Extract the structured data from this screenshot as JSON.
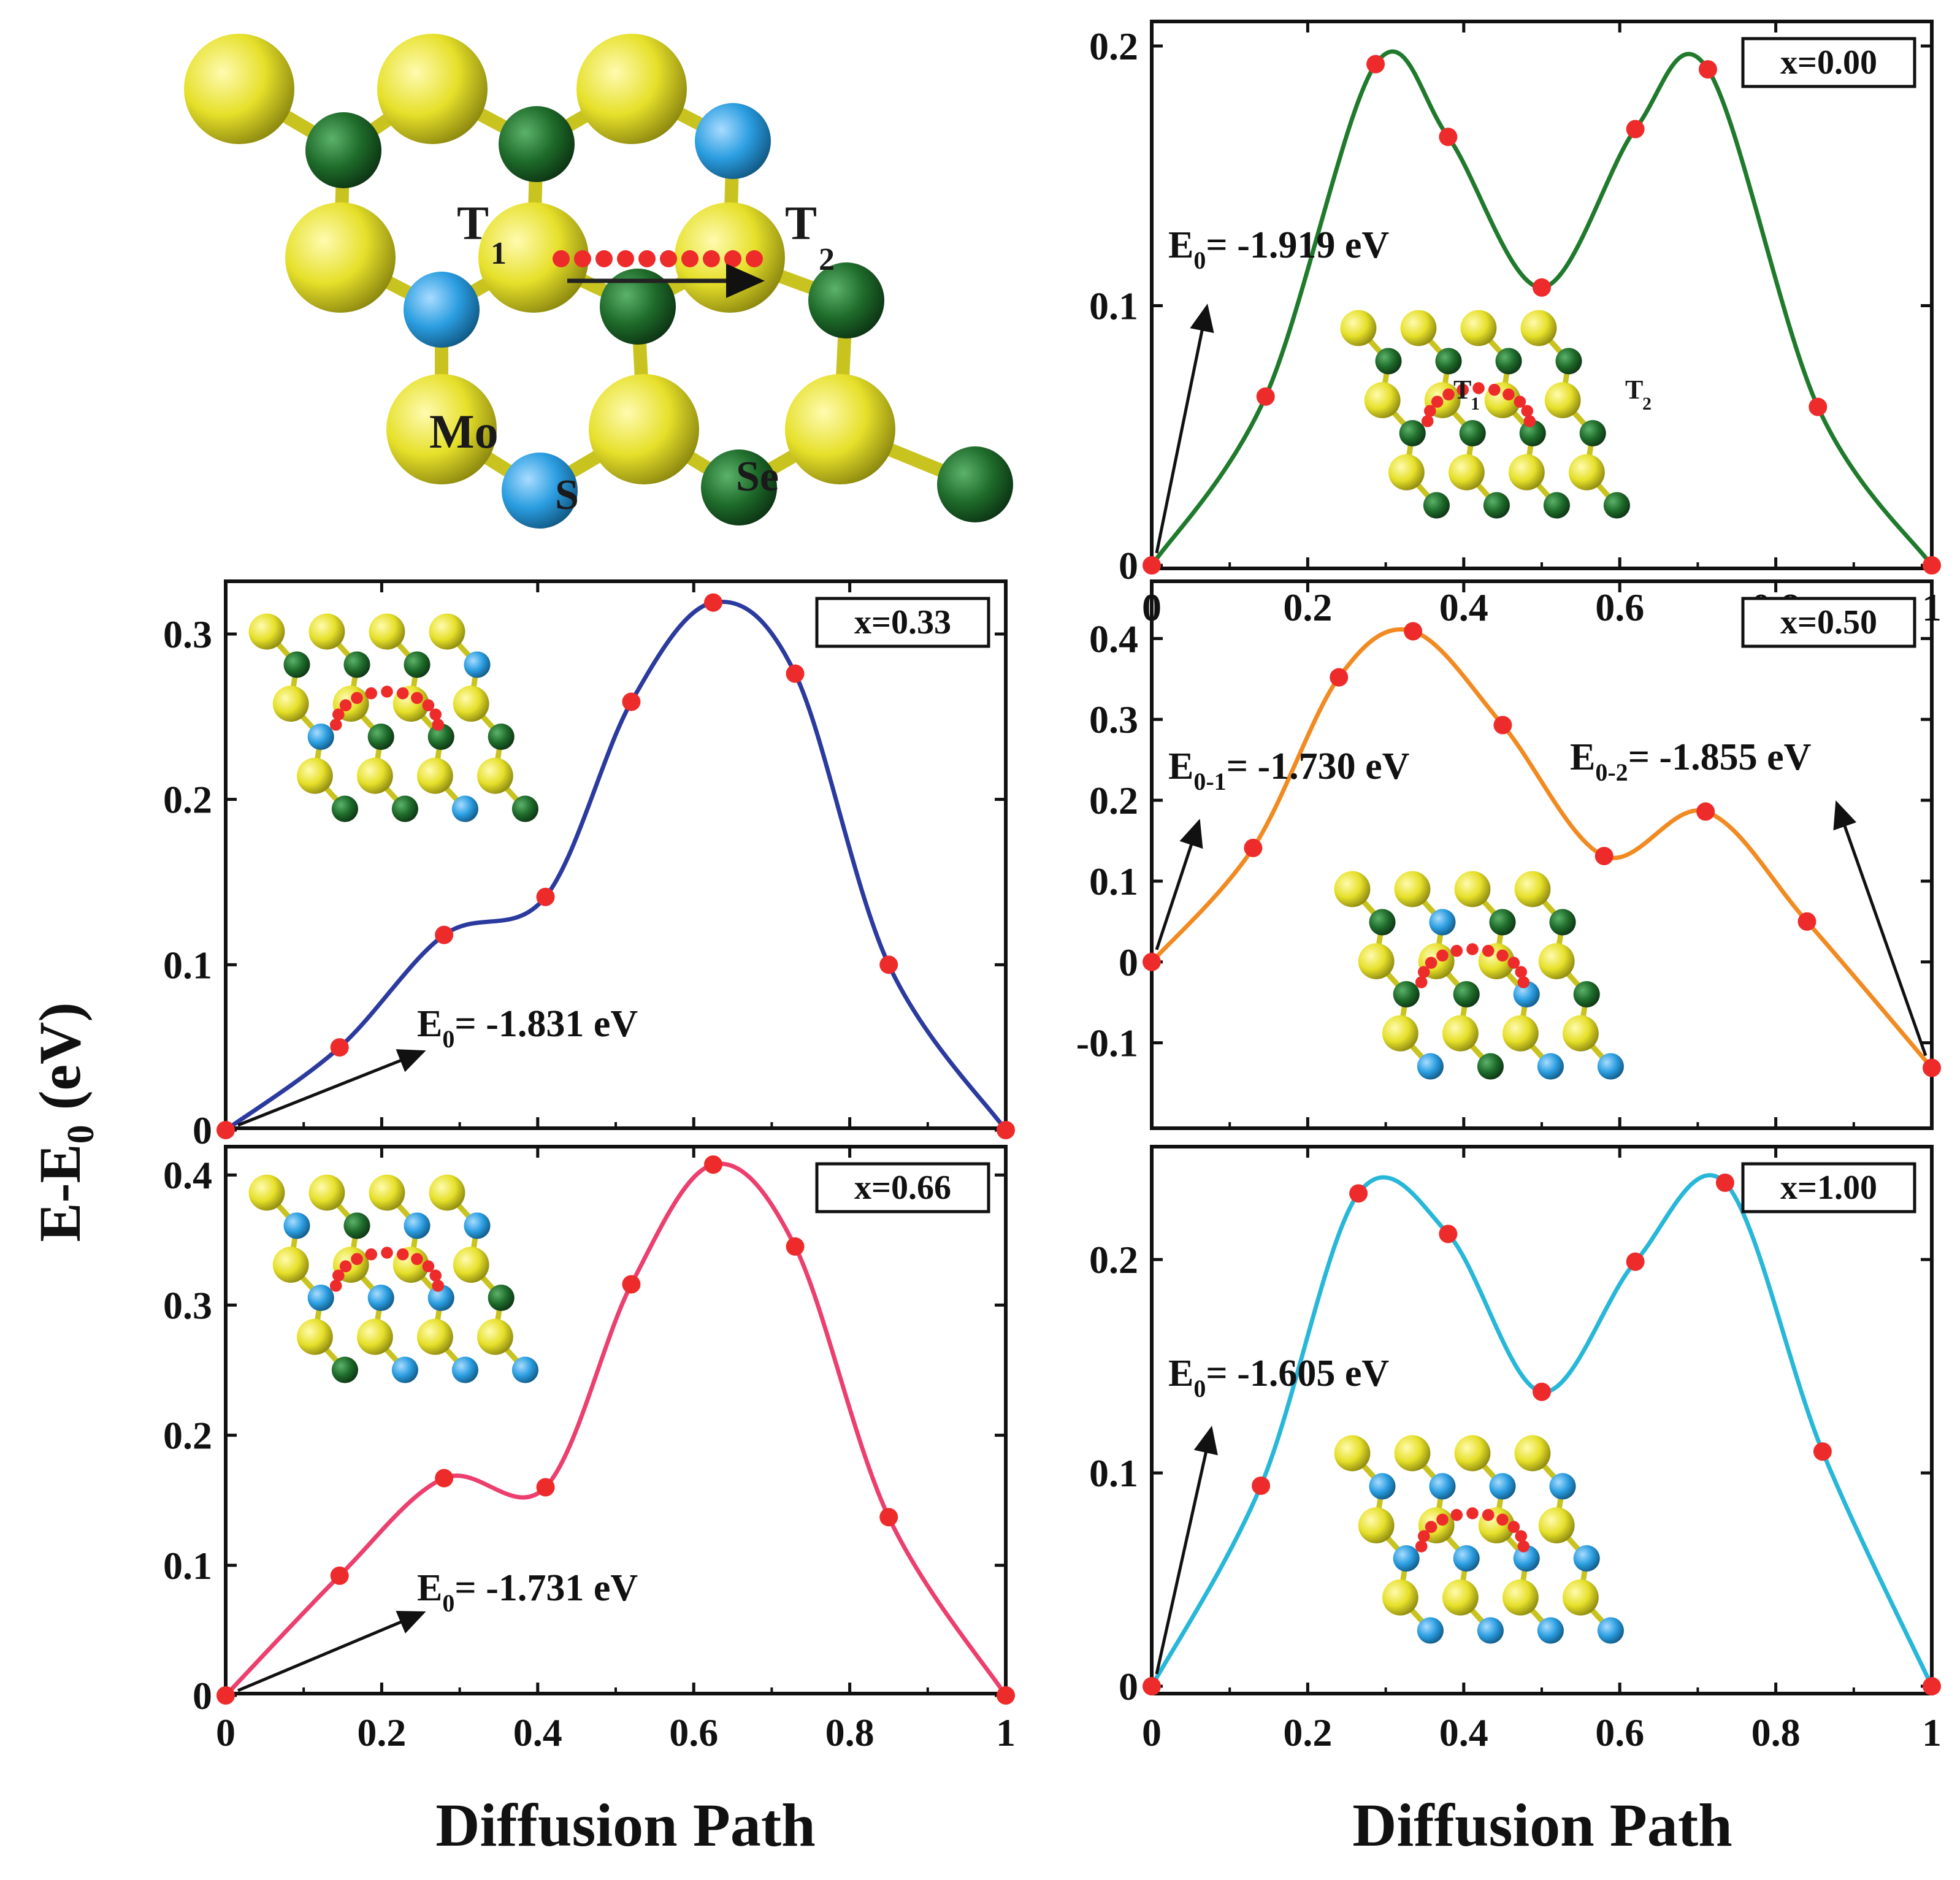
{
  "colors": {
    "Mo": "#e6e02a",
    "S": "#1e6b2a",
    "Se": "#2a9de0",
    "point": "#ee2b2b",
    "frame": "#111111"
  },
  "structure": {
    "labels": {
      "T1": "T",
      "T1_sub": "1",
      "T2": "T",
      "T2_sub": "2",
      "Mo": "Mo",
      "S": "S",
      "Se": "Se"
    }
  },
  "ylabel": {
    "main": "E-E",
    "sub": "0",
    "unit": " (eV)"
  },
  "xlabel": "Diffusion Path",
  "chart_data": [
    {
      "id": "x000",
      "type": "line",
      "legend": "x=0.00",
      "color": "#1f7a2c",
      "xlim": [
        0,
        1
      ],
      "ylim": [
        0,
        0.2
      ],
      "xticks": [
        "0",
        "0.2",
        "0.4",
        "0.6",
        "0.8",
        "1"
      ],
      "yticks": [
        {
          "v": 0,
          "t": "0"
        },
        {
          "v": 0.1,
          "t": "0.1"
        },
        {
          "v": 0.2,
          "t": "0.2"
        }
      ],
      "points": [
        [
          0,
          0
        ],
        [
          0.146,
          0.065
        ],
        [
          0.287,
          0.193
        ],
        [
          0.38,
          0.165
        ],
        [
          0.5,
          0.107
        ],
        [
          0.62,
          0.168
        ],
        [
          0.713,
          0.191
        ],
        [
          0.854,
          0.061
        ],
        [
          1,
          0
        ]
      ],
      "annotations": [
        {
          "E": "E",
          "sub": "0",
          "text": "= -1.919 eV"
        }
      ],
      "insetLegend": true
    },
    {
      "id": "x033",
      "type": "line",
      "legend": "x=0.33",
      "color": "#2b3a9e",
      "xlim": [
        0,
        1
      ],
      "ylim": [
        0,
        0.32
      ],
      "xticks": [],
      "yticks": [
        {
          "v": 0,
          "t": "0"
        },
        {
          "v": 0.1,
          "t": "0.1"
        },
        {
          "v": 0.2,
          "t": "0.2"
        },
        {
          "v": 0.3,
          "t": "0.3"
        }
      ],
      "points": [
        [
          0,
          0
        ],
        [
          0.146,
          0.05
        ],
        [
          0.28,
          0.118
        ],
        [
          0.41,
          0.141
        ],
        [
          0.52,
          0.259
        ],
        [
          0.625,
          0.319
        ],
        [
          0.73,
          0.276
        ],
        [
          0.85,
          0.1
        ],
        [
          1,
          0
        ]
      ],
      "annotations": [
        {
          "E": "E",
          "sub": "0",
          "text": "= -1.831 eV"
        }
      ]
    },
    {
      "id": "x050",
      "type": "line",
      "legend": "x=0.50",
      "color": "#f28a22",
      "xlim": [
        0,
        1
      ],
      "ylim": [
        -0.145,
        0.42
      ],
      "xticks": [],
      "yticks": [
        {
          "v": -0.1,
          "t": "-0.1"
        },
        {
          "v": 0,
          "t": "0"
        },
        {
          "v": 0.1,
          "t": "0.1"
        },
        {
          "v": 0.2,
          "t": "0.2"
        },
        {
          "v": 0.3,
          "t": "0.3"
        },
        {
          "v": 0.4,
          "t": "0.4"
        }
      ],
      "points": [
        [
          0,
          0
        ],
        [
          0.13,
          0.141
        ],
        [
          0.24,
          0.352
        ],
        [
          0.335,
          0.409
        ],
        [
          0.45,
          0.293
        ],
        [
          0.58,
          0.131
        ],
        [
          0.71,
          0.186
        ],
        [
          0.84,
          0.05
        ],
        [
          1,
          -0.131
        ]
      ],
      "annotations": [
        {
          "E": "E",
          "sub": "0-1",
          "text": "= -1.730 eV"
        },
        {
          "E": "E",
          "sub": "0-2",
          "text": "= -1.855 eV"
        }
      ]
    },
    {
      "id": "x066",
      "type": "line",
      "legend": "x=0.66",
      "color": "#ec3f6d",
      "xlim": [
        0,
        1
      ],
      "ylim": [
        0,
        0.41
      ],
      "xticks": [
        "0",
        "0.2",
        "0.4",
        "0.6",
        "0.8",
        "1"
      ],
      "yticks": [
        {
          "v": 0,
          "t": "0"
        },
        {
          "v": 0.1,
          "t": "0.1"
        },
        {
          "v": 0.2,
          "t": "0.2"
        },
        {
          "v": 0.3,
          "t": "0.3"
        },
        {
          "v": 0.4,
          "t": "0.4"
        }
      ],
      "points": [
        [
          0,
          0
        ],
        [
          0.146,
          0.092
        ],
        [
          0.28,
          0.167
        ],
        [
          0.41,
          0.16
        ],
        [
          0.52,
          0.316
        ],
        [
          0.625,
          0.408
        ],
        [
          0.73,
          0.345
        ],
        [
          0.85,
          0.137
        ],
        [
          1,
          0
        ]
      ],
      "annotations": [
        {
          "E": "E",
          "sub": "0",
          "text": "= -1.731 eV"
        }
      ]
    },
    {
      "id": "x100",
      "type": "line",
      "legend": "x=1.00",
      "color": "#27b7d8",
      "xlim": [
        0,
        1
      ],
      "ylim": [
        0,
        0.24
      ],
      "xticks": [
        "0",
        "0.2",
        "0.4",
        "0.6",
        "0.8",
        "1"
      ],
      "yticks": [
        {
          "v": 0,
          "t": "0"
        },
        {
          "v": 0.1,
          "t": "0.1"
        },
        {
          "v": 0.2,
          "t": "0.2"
        }
      ],
      "points": [
        [
          0,
          0
        ],
        [
          0.14,
          0.094
        ],
        [
          0.265,
          0.231
        ],
        [
          0.38,
          0.212
        ],
        [
          0.5,
          0.138
        ],
        [
          0.62,
          0.199
        ],
        [
          0.735,
          0.236
        ],
        [
          0.86,
          0.11
        ],
        [
          1,
          0
        ]
      ],
      "annotations": [
        {
          "E": "E",
          "sub": "0",
          "text": "= -1.605 eV"
        }
      ]
    }
  ]
}
